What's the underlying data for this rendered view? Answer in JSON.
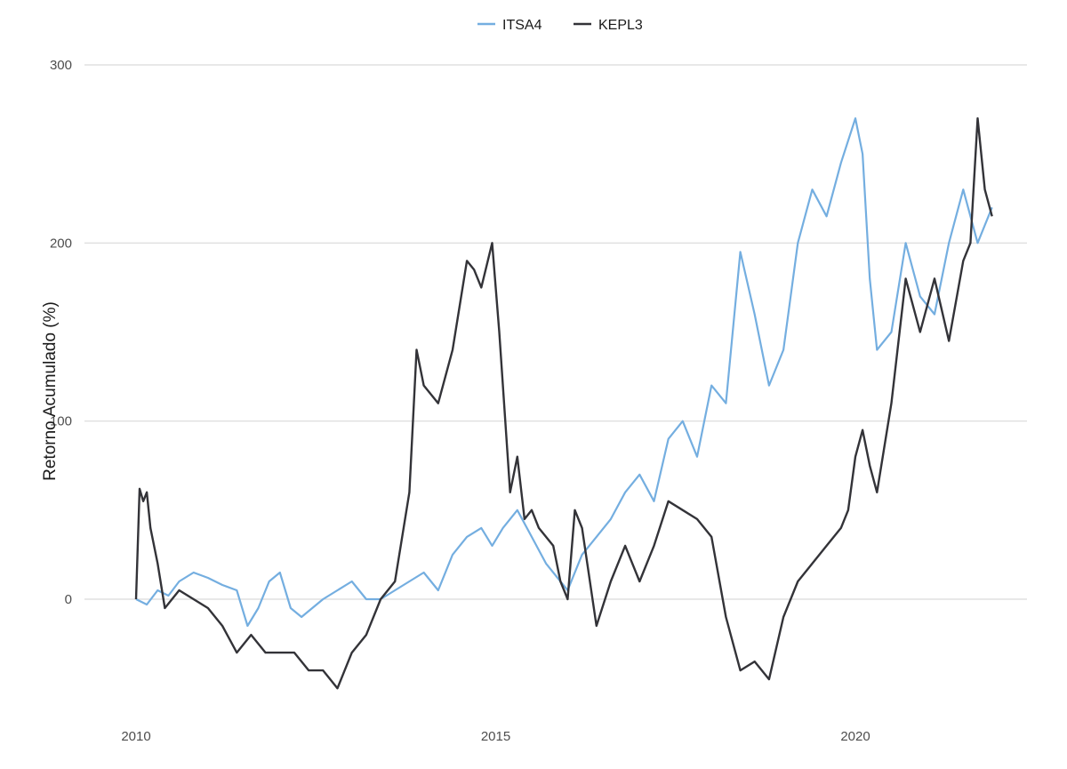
{
  "chart_data": {
    "type": "line",
    "ylabel": "Retorno Acumulado (%)",
    "xlim": [
      2010.0,
      2022.1
    ],
    "ylim": [
      -55,
      300
    ],
    "x_ticks": [
      2010,
      2015,
      2020
    ],
    "y_ticks": [
      0,
      100,
      200,
      300
    ],
    "grid": "horizontal-major",
    "legend_position": "top",
    "series": [
      {
        "name": "ITSA4",
        "color": "#74aee0",
        "x": [
          2010.0,
          2010.15,
          2010.3,
          2010.45,
          2010.6,
          2010.8,
          2011.0,
          2011.2,
          2011.4,
          2011.55,
          2011.7,
          2011.85,
          2012.0,
          2012.15,
          2012.3,
          2012.45,
          2012.6,
          2012.8,
          2013.0,
          2013.2,
          2013.4,
          2013.6,
          2013.8,
          2014.0,
          2014.2,
          2014.4,
          2014.6,
          2014.8,
          2014.95,
          2015.1,
          2015.3,
          2015.5,
          2015.7,
          2015.9,
          2016.0,
          2016.2,
          2016.4,
          2016.6,
          2016.8,
          2017.0,
          2017.2,
          2017.4,
          2017.6,
          2017.8,
          2018.0,
          2018.2,
          2018.4,
          2018.6,
          2018.8,
          2019.0,
          2019.2,
          2019.4,
          2019.6,
          2019.8,
          2020.0,
          2020.1,
          2020.2,
          2020.3,
          2020.5,
          2020.7,
          2020.9,
          2021.1,
          2021.3,
          2021.5,
          2021.7,
          2021.9
        ],
        "y": [
          0,
          -3,
          5,
          2,
          10,
          15,
          12,
          8,
          5,
          -15,
          -5,
          10,
          15,
          -5,
          -10,
          -5,
          0,
          5,
          10,
          0,
          0,
          5,
          10,
          15,
          5,
          25,
          35,
          40,
          30,
          40,
          50,
          35,
          20,
          10,
          5,
          25,
          35,
          45,
          60,
          70,
          55,
          90,
          100,
          80,
          120,
          110,
          195,
          160,
          120,
          140,
          200,
          230,
          215,
          245,
          270,
          250,
          180,
          140,
          150,
          200,
          170,
          160,
          200,
          230,
          200,
          220
        ]
      },
      {
        "name": "KEPL3",
        "color": "#333338",
        "x": [
          2010.0,
          2010.05,
          2010.1,
          2010.15,
          2010.2,
          2010.3,
          2010.4,
          2010.6,
          2010.8,
          2011.0,
          2011.2,
          2011.4,
          2011.6,
          2011.8,
          2012.0,
          2012.2,
          2012.4,
          2012.6,
          2012.8,
          2013.0,
          2013.2,
          2013.4,
          2013.6,
          2013.8,
          2013.9,
          2014.0,
          2014.2,
          2014.4,
          2014.6,
          2014.7,
          2014.8,
          2014.95,
          2015.05,
          2015.2,
          2015.3,
          2015.4,
          2015.5,
          2015.6,
          2015.8,
          2015.9,
          2016.0,
          2016.1,
          2016.2,
          2016.4,
          2016.6,
          2016.8,
          2017.0,
          2017.2,
          2017.4,
          2017.6,
          2017.8,
          2018.0,
          2018.2,
          2018.4,
          2018.6,
          2018.8,
          2019.0,
          2019.2,
          2019.4,
          2019.6,
          2019.8,
          2019.9,
          2020.0,
          2020.1,
          2020.2,
          2020.3,
          2020.5,
          2020.7,
          2020.9,
          2021.1,
          2021.3,
          2021.5,
          2021.6,
          2021.7,
          2021.8,
          2021.9
        ],
        "y": [
          0,
          62,
          55,
          60,
          40,
          20,
          -5,
          5,
          0,
          -5,
          -15,
          -30,
          -20,
          -30,
          -30,
          -30,
          -40,
          -40,
          -50,
          -30,
          -20,
          0,
          10,
          60,
          140,
          120,
          110,
          140,
          190,
          185,
          175,
          200,
          150,
          60,
          80,
          45,
          50,
          40,
          30,
          10,
          0,
          50,
          40,
          -15,
          10,
          30,
          10,
          30,
          55,
          50,
          45,
          35,
          -10,
          -40,
          -35,
          -45,
          -10,
          10,
          20,
          30,
          40,
          50,
          80,
          95,
          75,
          60,
          110,
          180,
          150,
          180,
          145,
          190,
          200,
          270,
          230,
          215
        ]
      }
    ]
  }
}
